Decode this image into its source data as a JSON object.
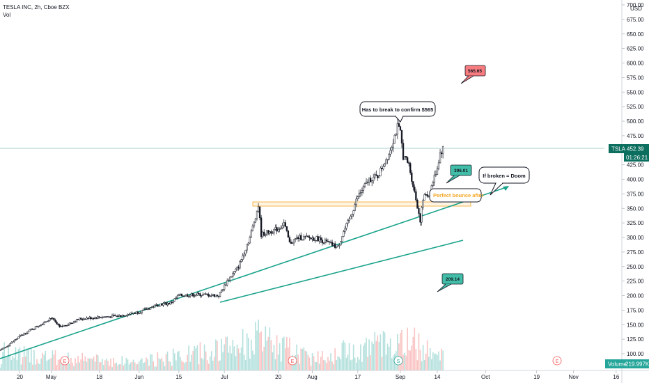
{
  "header": {
    "symbol_line": "TESLA INC, 2h, Cboe BZX",
    "volume_indicator": "Vol"
  },
  "price_axis": {
    "currency": "USD",
    "ticks": [
      "700.00",
      "675.00",
      "650.00",
      "625.00",
      "600.00",
      "575.00",
      "550.00",
      "525.00",
      "500.00",
      "475.00",
      "450.00",
      "425.00",
      "400.00",
      "375.00",
      "350.00",
      "325.00",
      "300.00",
      "275.00",
      "250.00",
      "225.00",
      "200.00",
      "175.00",
      "150.00",
      "125.00",
      "100.00"
    ],
    "last_price_label": "TSLA",
    "last_price": "452.39",
    "countdown": "01:26:21",
    "volume_label": "Volume",
    "volume_value": "219.997K"
  },
  "time_axis": {
    "ticks": [
      "20",
      "May",
      "18",
      "Jun",
      "15",
      "Jul",
      "20",
      "Aug",
      "17",
      "Sep",
      "14",
      "Oct",
      "19",
      "Nov",
      "16"
    ]
  },
  "events": [
    "E",
    "E",
    "S",
    "E"
  ],
  "annotations": {
    "callout_break": "Has to break to confirm $565",
    "callout_doom": "If broken = Doom",
    "bounce_text": "Perfect bounce after",
    "target_high": "565.65",
    "target_mid": "396.01",
    "target_low": "209.14"
  },
  "colors": {
    "up": "#26a69a",
    "down": "#ef5350",
    "candle_body": "#131722",
    "trendline": "#089981",
    "support_box": "#f5a623",
    "label_red": "#f77c80",
    "label_teal": "#42bda8",
    "last_price_bg": "#0b6e5f"
  },
  "chart_data": {
    "type": "candlestick",
    "symbol": "TSLA",
    "interval": "2h",
    "ylim": [
      100,
      710
    ],
    "x_range": [
      "2020-04-13",
      "2020-11-18"
    ],
    "price_path": [
      [
        "2020-04-14",
        108
      ],
      [
        "2020-04-20",
        130
      ],
      [
        "2020-04-27",
        150
      ],
      [
        "2020-05-01",
        162
      ],
      [
        "2020-05-04",
        145
      ],
      [
        "2020-05-11",
        160
      ],
      [
        "2020-05-18",
        163
      ],
      [
        "2020-05-25",
        165
      ],
      [
        "2020-06-01",
        172
      ],
      [
        "2020-06-08",
        185
      ],
      [
        "2020-06-12",
        187
      ],
      [
        "2020-06-15",
        200
      ],
      [
        "2020-06-22",
        202
      ],
      [
        "2020-06-29",
        200
      ],
      [
        "2020-07-02",
        225
      ],
      [
        "2020-07-06",
        250
      ],
      [
        "2020-07-08",
        275
      ],
      [
        "2020-07-10",
        300
      ],
      [
        "2020-07-13",
        355
      ],
      [
        "2020-07-14",
        305
      ],
      [
        "2020-07-20",
        315
      ],
      [
        "2020-07-22",
        325
      ],
      [
        "2020-07-24",
        290
      ],
      [
        "2020-07-27",
        300
      ],
      [
        "2020-08-03",
        298
      ],
      [
        "2020-08-10",
        283
      ],
      [
        "2020-08-12",
        310
      ],
      [
        "2020-08-14",
        330
      ],
      [
        "2020-08-17",
        370
      ],
      [
        "2020-08-21",
        400
      ],
      [
        "2020-08-24",
        405
      ],
      [
        "2020-08-26",
        425
      ],
      [
        "2020-08-28",
        445
      ],
      [
        "2020-08-31",
        490
      ],
      [
        "2020-09-01",
        480
      ],
      [
        "2020-09-02",
        440
      ],
      [
        "2020-09-04",
        425
      ],
      [
        "2020-09-08",
        330
      ],
      [
        "2020-09-09",
        365
      ],
      [
        "2020-09-10",
        375
      ],
      [
        "2020-09-11",
        372
      ],
      [
        "2020-09-14",
        420
      ],
      [
        "2020-09-15",
        445
      ],
      [
        "2020-09-16",
        452.39
      ]
    ],
    "volume_profile": [
      [
        "2020-04-14",
        25
      ],
      [
        "2020-05-01",
        18
      ],
      [
        "2020-06-01",
        12
      ],
      [
        "2020-07-01",
        30
      ],
      [
        "2020-07-13",
        45
      ],
      [
        "2020-08-01",
        18
      ],
      [
        "2020-08-17",
        32
      ],
      [
        "2020-09-01",
        40
      ],
      [
        "2020-09-08",
        38
      ],
      [
        "2020-09-16",
        24
      ]
    ],
    "annotations": [
      {
        "type": "trendline",
        "from": [
          "2020-04-13",
          100
        ],
        "to": [
          "2020-10-02",
          388
        ]
      },
      {
        "type": "trendline",
        "from": [
          "2020-06-29",
          188
        ],
        "to": [
          "2020-09-20",
          295
        ]
      },
      {
        "type": "support_zone",
        "from": "2020-07-11",
        "to": "2020-09-21",
        "range": [
          354,
          362
        ]
      },
      {
        "type": "price_label",
        "text": "565.65",
        "date": "2020-09-28",
        "price": 598
      },
      {
        "type": "price_label",
        "text": "396.01",
        "date": "2020-09-16",
        "price": 395
      },
      {
        "type": "price_label",
        "text": "209.14",
        "date": "2020-09-16",
        "price": 227
      }
    ]
  }
}
